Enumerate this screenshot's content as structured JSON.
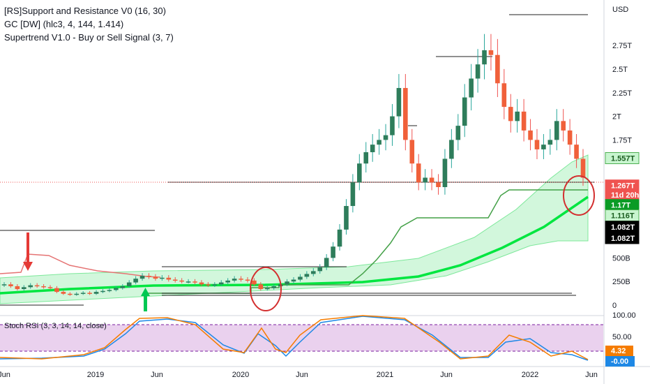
{
  "legend": {
    "line1": "[RS]Support and Resistance V0 (16, 30)",
    "line2": "GC [DW] (hlc3, 4, 144, 1.414)",
    "line3": "Supertrend V1.0 - Buy or Sell Signal (3, 7)"
  },
  "chart_data": {
    "type": "candlestick",
    "currency": "USD",
    "y_ticks": [
      "0",
      "250B",
      "500B",
      "1.75T",
      "2T",
      "2.25T",
      "2.5T",
      "2.75T"
    ],
    "y_ticks_values": [
      0,
      0.25,
      0.5,
      1.75,
      2.0,
      2.25,
      2.5,
      2.75
    ],
    "x_ticks": [
      "Jun",
      "2019",
      "Jun",
      "2020",
      "Jun",
      "2021",
      "Jun",
      "2022",
      "Jun"
    ],
    "price_tags": [
      {
        "label": "1.557T",
        "value": 1.557,
        "bg": "#c8f5cf",
        "fg": "#1b5e20",
        "border": "#4caf50"
      },
      {
        "label": "1.267T",
        "value": 1.267,
        "bg": "#ef5350",
        "fg": "#ffffff"
      },
      {
        "label": "11d 20h",
        "value": 1.17,
        "bg": "#ef5350",
        "fg": "#ffffff"
      },
      {
        "label": "1.17T",
        "value": 1.06,
        "bg": "#0a9b25",
        "fg": "#ffffff"
      },
      {
        "label": "1.116T",
        "value": 0.95,
        "bg": "#c8f5cf",
        "fg": "#1b5e20",
        "border": "#4caf50"
      },
      {
        "label": "1.082T",
        "value": 0.83,
        "bg": "#000000",
        "fg": "#ffffff"
      },
      {
        "label": "1.082T",
        "value": 0.71,
        "bg": "#000000",
        "fg": "#ffffff"
      }
    ],
    "candles_close_trillions": [
      0.22,
      0.2,
      0.17,
      0.19,
      0.21,
      0.2,
      0.19,
      0.18,
      0.14,
      0.12,
      0.11,
      0.12,
      0.13,
      0.12,
      0.14,
      0.15,
      0.16,
      0.18,
      0.2,
      0.24,
      0.28,
      0.31,
      0.3,
      0.28,
      0.29,
      0.27,
      0.26,
      0.25,
      0.25,
      0.24,
      0.22,
      0.21,
      0.22,
      0.24,
      0.26,
      0.28,
      0.27,
      0.26,
      0.22,
      0.17,
      0.18,
      0.2,
      0.22,
      0.25,
      0.27,
      0.3,
      0.33,
      0.36,
      0.4,
      0.5,
      0.62,
      0.8,
      1.05,
      1.3,
      1.5,
      1.62,
      1.7,
      1.75,
      1.8,
      2.0,
      2.3,
      1.75,
      1.5,
      1.3,
      1.35,
      1.3,
      1.25,
      1.55,
      1.75,
      1.9,
      2.2,
      2.4,
      2.55,
      2.7,
      2.65,
      2.35,
      2.1,
      1.95,
      2.05,
      1.85,
      1.75,
      1.65,
      1.7,
      1.75,
      1.95,
      1.85,
      1.7,
      1.55,
      1.35
    ],
    "stoch_rsi": {
      "label": "Stoch RSI (3, 3, 14, 14, close)",
      "ticks": [
        "100.00",
        "50.00"
      ],
      "k_value": "4.32",
      "d_value": "-0.00",
      "k_color": "#f57c00",
      "d_color": "#1e88e5"
    },
    "colors": {
      "up": "#26a69a",
      "down": "#ef5350",
      "gc_line": "#00e640",
      "band": "#7de89a",
      "supertrend": "#4caf50",
      "rs_line": "#e57373",
      "stoch_band": "#e1bee7"
    }
  }
}
